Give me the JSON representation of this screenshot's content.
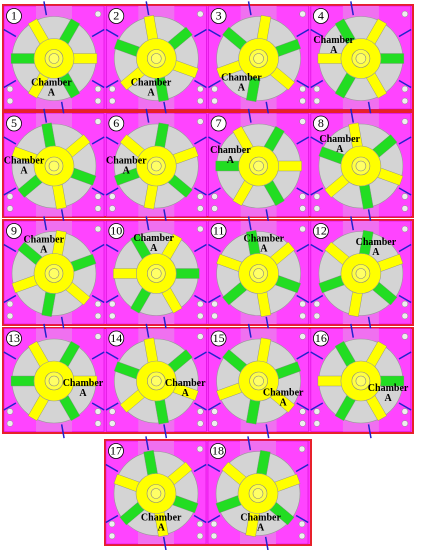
{
  "panels": [
    {
      "number": "1",
      "label": [
        "Chamber",
        "A"
      ]
    },
    {
      "number": "2",
      "label": [
        "Chamber",
        "A"
      ]
    },
    {
      "number": "3",
      "label": [
        "Chamber",
        "A"
      ]
    },
    {
      "number": "4",
      "label": [
        "Chamber",
        "A"
      ]
    },
    {
      "number": "5",
      "label": [
        "Chamber",
        "A"
      ]
    },
    {
      "number": "6",
      "label": [
        "Chamber",
        "A"
      ]
    },
    {
      "number": "7",
      "label": [
        "Chamber",
        "A"
      ]
    },
    {
      "number": "8",
      "label": [
        "Chamber",
        "A"
      ]
    },
    {
      "number": "9",
      "label": [
        "Chamber",
        "A"
      ]
    },
    {
      "number": "10",
      "label": [
        "Chamber",
        "A"
      ]
    },
    {
      "number": "11",
      "label": [
        "Chamber",
        "A"
      ]
    },
    {
      "number": "12",
      "label": [
        "Chamber",
        "A"
      ]
    },
    {
      "number": "13",
      "label": [
        "Chamber",
        "A"
      ]
    },
    {
      "number": "14",
      "label": [
        "Chamber",
        "A"
      ]
    },
    {
      "number": "15",
      "label": [
        "Chamber",
        "A"
      ]
    },
    {
      "number": "16",
      "label": [
        "Chamber",
        "A"
      ]
    },
    {
      "number": "17",
      "label": [
        "Chamber",
        "A"
      ]
    },
    {
      "number": "18",
      "label": [
        "Chamber",
        "A"
      ]
    }
  ]
}
